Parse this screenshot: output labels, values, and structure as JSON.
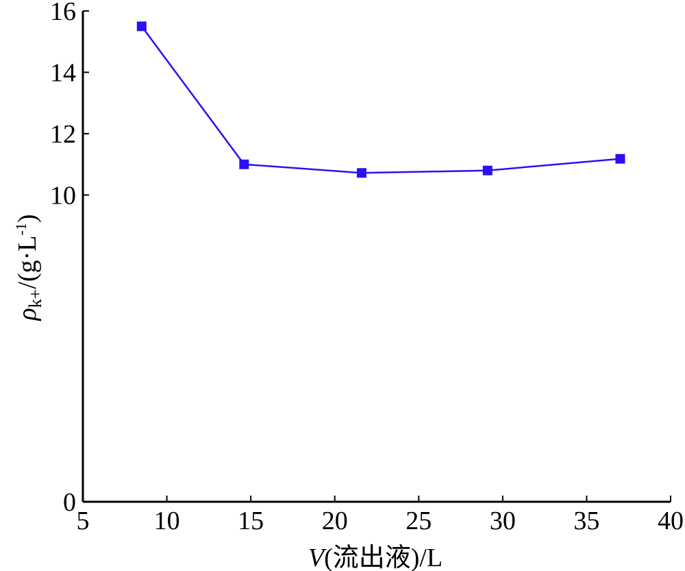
{
  "chart_data": {
    "type": "line",
    "title": "",
    "xlabel": {
      "var": "V",
      "rest": "(流出液)/L"
    },
    "ylabel": {
      "var": "ρ",
      "sub": "k+",
      "rest": "/(g·L",
      "sup": "-1",
      "close": ")"
    },
    "x_ticks": [
      5,
      10,
      15,
      20,
      25,
      30,
      35,
      40
    ],
    "y_ticks": [
      {
        "label": "0",
        "value": 0
      },
      {
        "label": "10",
        "value": 10
      },
      {
        "label": "12",
        "value": 12
      },
      {
        "label": "14",
        "value": 14
      },
      {
        "label": "16",
        "value": 16
      }
    ],
    "xlim": [
      5,
      40
    ],
    "ylim": [
      0,
      16
    ],
    "y_axis_break": {
      "from": 0,
      "to": 10,
      "display_as": 8.3
    },
    "grid": false,
    "series": [
      {
        "color": "#2b10f0",
        "marker": "square",
        "x": [
          8.5,
          14.6,
          21.6,
          29.1,
          37.0
        ],
        "y": [
          15.5,
          11.0,
          10.72,
          10.8,
          11.18
        ]
      }
    ]
  }
}
